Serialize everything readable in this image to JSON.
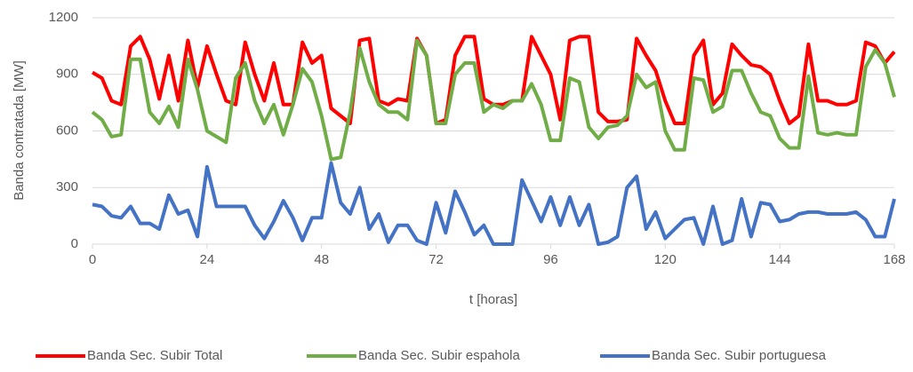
{
  "chart_data": {
    "type": "line",
    "y_label": "Banda contratada [MW]",
    "x_label": "t [horas]",
    "x": [
      0,
      2,
      4,
      6,
      8,
      10,
      12,
      14,
      16,
      18,
      20,
      22,
      24,
      26,
      28,
      30,
      32,
      34,
      36,
      38,
      40,
      42,
      44,
      46,
      48,
      50,
      52,
      54,
      56,
      58,
      60,
      62,
      64,
      66,
      68,
      70,
      72,
      74,
      76,
      78,
      80,
      82,
      84,
      86,
      88,
      90,
      92,
      94,
      96,
      98,
      100,
      102,
      104,
      106,
      108,
      110,
      112,
      114,
      116,
      118,
      120,
      122,
      124,
      126,
      128,
      130,
      132,
      134,
      136,
      138,
      140,
      142,
      144,
      146,
      148,
      150,
      152,
      154,
      156,
      158,
      160,
      162,
      164,
      166,
      168
    ],
    "series": [
      {
        "name": "Banda Sec. Subir Total",
        "color": "#ff0000",
        "values": [
          910,
          880,
          760,
          740,
          1050,
          1100,
          980,
          770,
          1000,
          760,
          1080,
          830,
          1050,
          900,
          760,
          740,
          1070,
          900,
          760,
          960,
          740,
          740,
          1070,
          960,
          1000,
          720,
          680,
          640,
          1080,
          1090,
          760,
          740,
          770,
          760,
          1090,
          1000,
          640,
          660,
          1000,
          1100,
          1100,
          770,
          740,
          740,
          760,
          760,
          1100,
          1000,
          900,
          660,
          1080,
          1100,
          1100,
          700,
          650,
          650,
          660,
          1090,
          1000,
          920,
          760,
          640,
          640,
          1000,
          1080,
          740,
          800,
          1060,
          1000,
          950,
          940,
          900,
          760,
          640,
          680,
          1060,
          760,
          760,
          740,
          740,
          760,
          1070,
          1050,
          960,
          1020
        ]
      },
      {
        "name": "Banda Sec. Subir espahola",
        "color": "#70ad47",
        "values": [
          700,
          660,
          570,
          580,
          980,
          980,
          700,
          640,
          730,
          620,
          980,
          820,
          600,
          570,
          540,
          880,
          960,
          760,
          640,
          740,
          580,
          740,
          930,
          860,
          680,
          450,
          460,
          700,
          1040,
          860,
          740,
          700,
          700,
          660,
          1080,
          1000,
          640,
          640,
          900,
          960,
          960,
          700,
          740,
          720,
          760,
          760,
          850,
          740,
          550,
          550,
          880,
          860,
          620,
          560,
          620,
          630,
          680,
          900,
          830,
          860,
          600,
          500,
          500,
          880,
          870,
          700,
          730,
          920,
          920,
          800,
          700,
          680,
          560,
          510,
          510,
          890,
          590,
          580,
          590,
          580,
          580,
          940,
          1030,
          960,
          780
        ]
      },
      {
        "name": "Banda Sec. Subir portuguesa",
        "color": "#4472c4",
        "values": [
          210,
          200,
          150,
          140,
          200,
          110,
          110,
          80,
          260,
          160,
          180,
          40,
          410,
          200,
          200,
          200,
          200,
          100,
          30,
          120,
          230,
          140,
          20,
          140,
          140,
          430,
          220,
          160,
          300,
          80,
          160,
          10,
          100,
          100,
          20,
          0,
          220,
          60,
          280,
          170,
          50,
          100,
          0,
          0,
          0,
          340,
          230,
          120,
          250,
          100,
          250,
          100,
          210,
          0,
          10,
          40,
          300,
          360,
          80,
          170,
          30,
          80,
          130,
          140,
          0,
          200,
          0,
          20,
          240,
          40,
          220,
          210,
          120,
          130,
          160,
          170,
          170,
          160,
          160,
          160,
          170,
          130,
          40,
          40,
          240
        ]
      }
    ],
    "xlim": [
      0,
      168
    ],
    "xticks": [
      0,
      24,
      48,
      72,
      96,
      120,
      144,
      168
    ],
    "ylim": [
      0,
      1200
    ],
    "yticks": [
      0,
      300,
      600,
      900,
      1200
    ],
    "grid": true,
    "legend": "bottom"
  }
}
